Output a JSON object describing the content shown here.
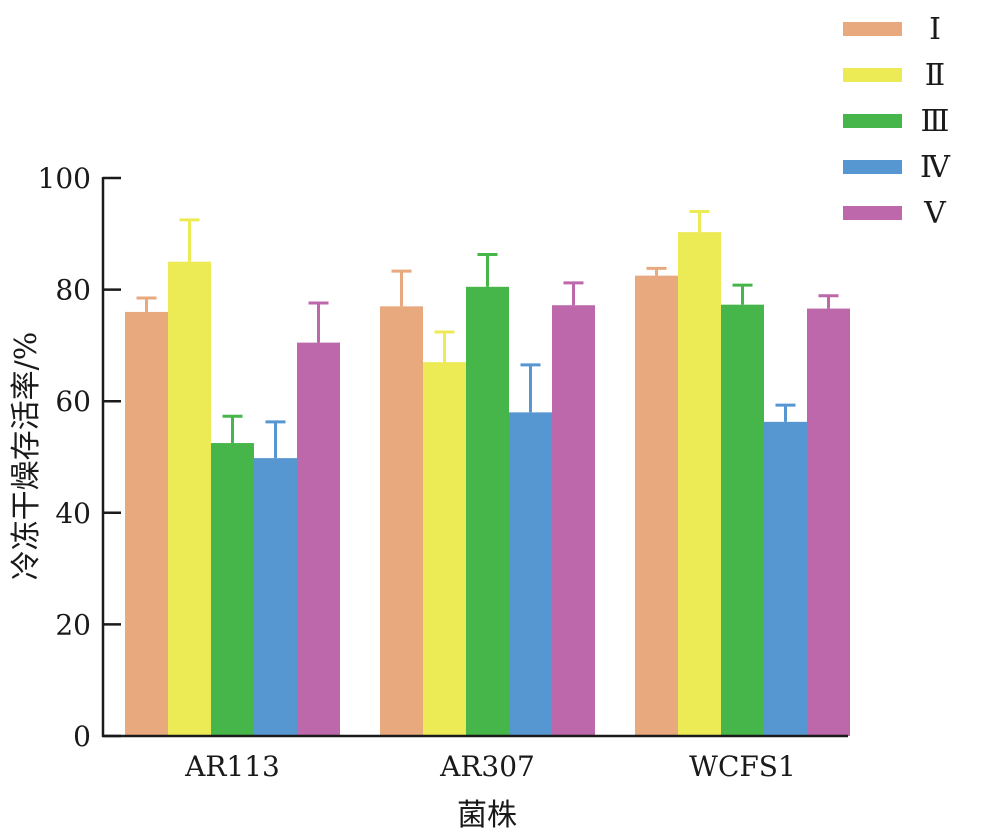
{
  "chart_data": {
    "type": "bar",
    "title": "",
    "xlabel": "菌株",
    "ylabel": "冷冻干燥存活率/%",
    "ylim": [
      0,
      100
    ],
    "yticks": [
      0,
      20,
      40,
      60,
      80,
      100
    ],
    "categories": [
      "AR113",
      "AR307",
      "WCFS1"
    ],
    "legend_position": "top-right",
    "grid": false,
    "series": [
      {
        "name": "Ⅰ",
        "color": "#E8A97E",
        "values": [
          76,
          77,
          82.5
        ],
        "errors": [
          2.5,
          6.3,
          1.3
        ]
      },
      {
        "name": "Ⅱ",
        "color": "#ECEA55",
        "values": [
          85,
          67,
          90.3
        ],
        "errors": [
          7.5,
          5.4,
          3.7
        ]
      },
      {
        "name": "Ⅲ",
        "color": "#46B64A",
        "values": [
          52.5,
          80.5,
          77.3
        ],
        "errors": [
          4.8,
          5.8,
          3.5
        ]
      },
      {
        "name": "Ⅳ",
        "color": "#5797D1",
        "values": [
          49.8,
          58,
          56.3
        ],
        "errors": [
          6.5,
          8.5,
          3
        ]
      },
      {
        "name": "Ⅴ",
        "color": "#BC68AA",
        "values": [
          70.5,
          77.2,
          76.6
        ],
        "errors": [
          7.1,
          4,
          2.3
        ]
      }
    ]
  }
}
